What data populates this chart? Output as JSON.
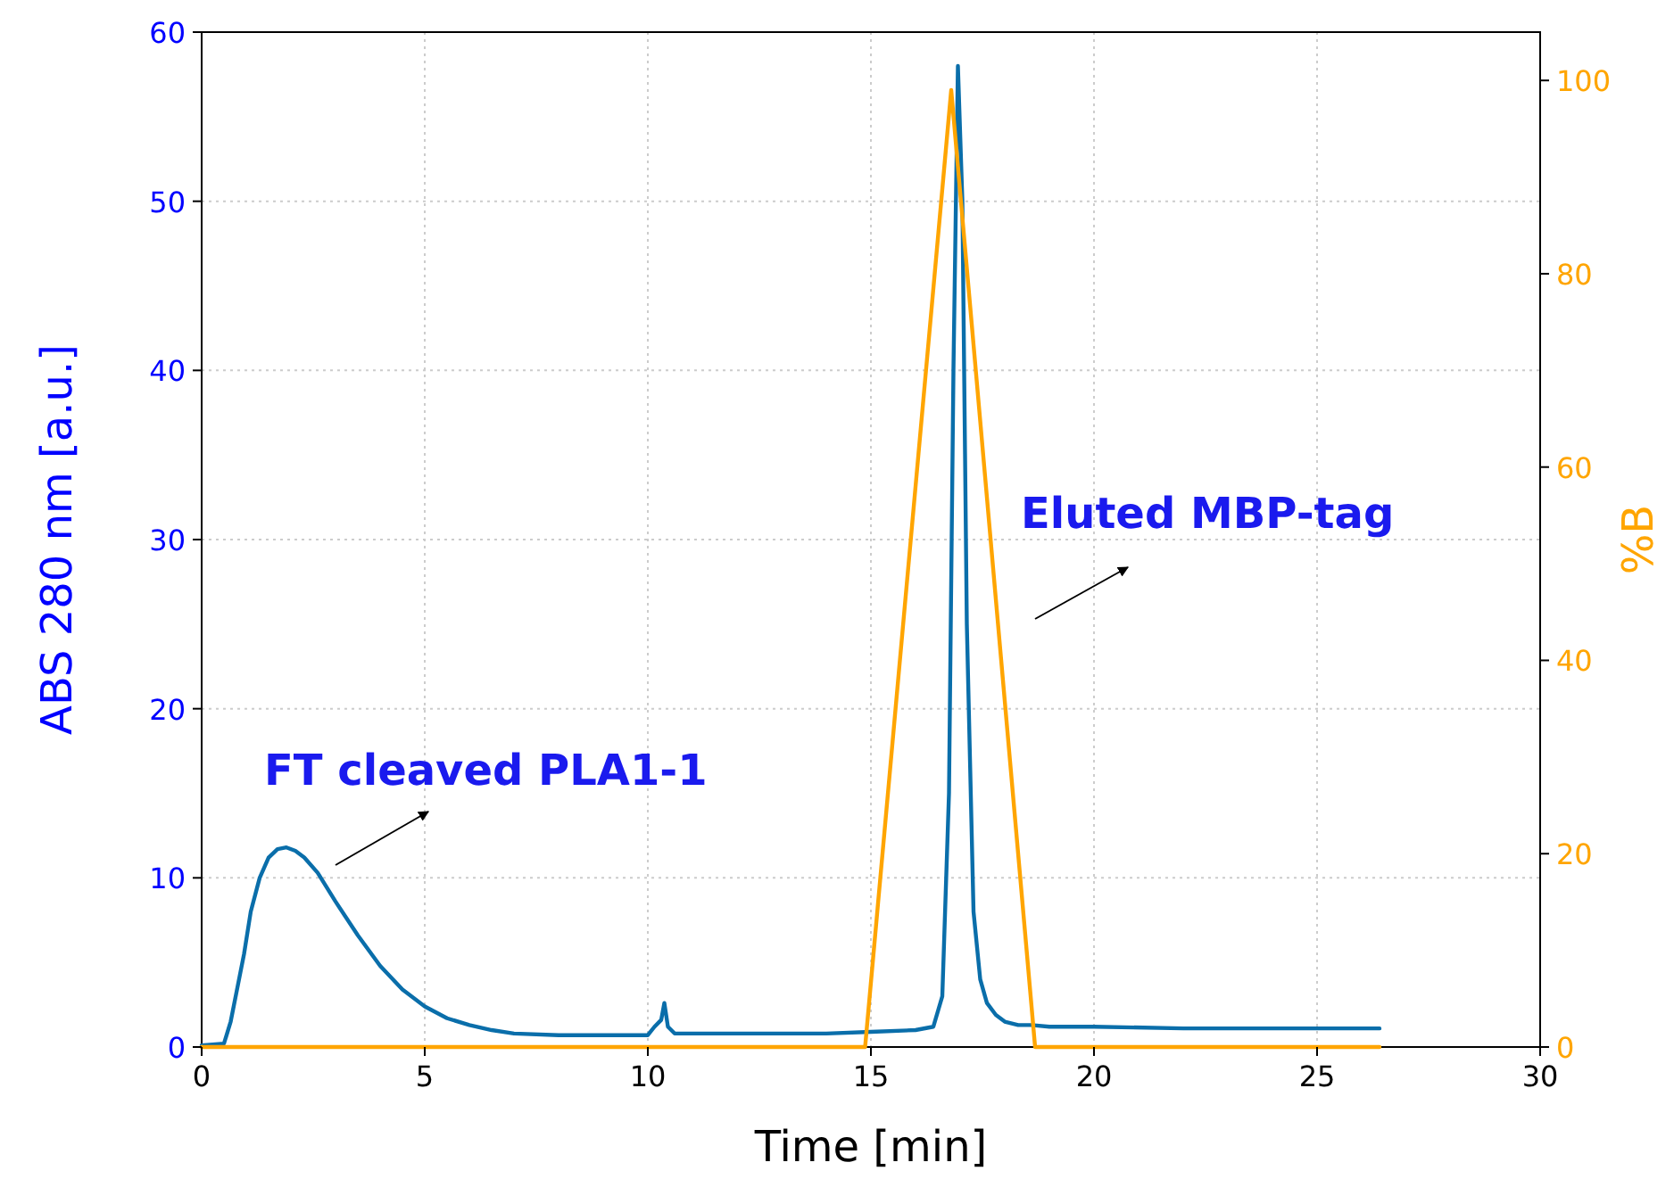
{
  "chart_data": {
    "type": "line",
    "xlabel": "Time [min]",
    "ylabel": "ABS 280 nm [a.u.]",
    "y2label": "%B",
    "xlim": [
      0,
      30
    ],
    "xticks": [
      0,
      5,
      10,
      15,
      20,
      25,
      30
    ],
    "ylim": [
      0,
      60
    ],
    "yticks": [
      0,
      10,
      20,
      30,
      40,
      50,
      60
    ],
    "y2lim": [
      0,
      105
    ],
    "y2ticks": [
      0,
      20,
      40,
      60,
      80,
      100
    ],
    "grid": true,
    "annotations": [
      "FT cleaved PLA1-1",
      "Eluted MBP-tag"
    ],
    "series": [
      {
        "color": "#0a6eaa",
        "x": [
          0,
          0.5,
          0.65,
          0.8,
          0.95,
          1.1,
          1.3,
          1.5,
          1.7,
          1.9,
          2.1,
          2.3,
          2.6,
          3,
          3.5,
          4,
          4.5,
          5,
          5.5,
          6,
          6.5,
          7,
          8,
          9,
          10,
          10.15,
          10.3,
          10.37,
          10.45,
          10.6,
          12,
          14,
          15,
          16,
          16.4,
          16.6,
          16.75,
          16.85,
          16.95,
          17.05,
          17.15,
          17.3,
          17.45,
          17.6,
          17.8,
          18,
          18.3,
          18.6,
          19,
          20,
          22,
          24,
          26.4
        ],
        "values": [
          0.1,
          0.2,
          1.5,
          3.5,
          5.5,
          8,
          10,
          11.2,
          11.7,
          11.8,
          11.6,
          11.2,
          10.3,
          8.6,
          6.6,
          4.8,
          3.4,
          2.4,
          1.7,
          1.3,
          1.0,
          0.8,
          0.7,
          0.7,
          0.7,
          1.2,
          1.6,
          2.6,
          1.2,
          0.8,
          0.8,
          0.8,
          0.9,
          1.0,
          1.2,
          3,
          15,
          40,
          58,
          50,
          25,
          8,
          4,
          2.6,
          1.9,
          1.5,
          1.3,
          1.3,
          1.2,
          1.2,
          1.1,
          1.1,
          1.1
        ]
      },
      {
        "color": "#ffa500",
        "axis": "y2",
        "x": [
          0,
          14.87,
          16.8,
          18.68,
          26.4
        ],
        "values": [
          0,
          0,
          99,
          0,
          0
        ]
      }
    ]
  }
}
